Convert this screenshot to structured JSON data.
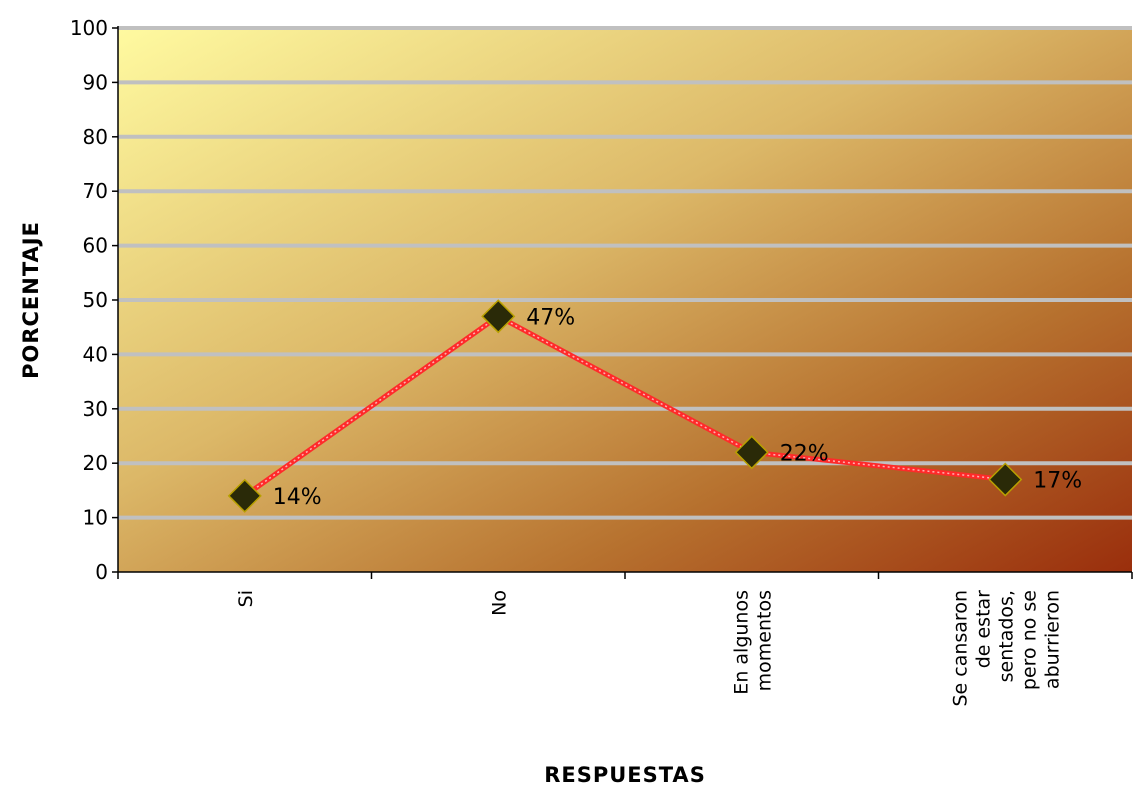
{
  "chart_data": {
    "type": "line",
    "categories": [
      [
        "Si"
      ],
      [
        "No"
      ],
      [
        "En algunos",
        "momentos"
      ],
      [
        "Se cansaron",
        "de estar",
        "sentados,",
        "pero no se",
        "aburrieron"
      ]
    ],
    "values": [
      14,
      47,
      22,
      17
    ],
    "data_labels": [
      "14%",
      "47%",
      "22%",
      "17%"
    ],
    "xlabel": "RESPUESTAS",
    "ylabel": "PORCENTAJE",
    "ylim": [
      0,
      100
    ],
    "yticks": [
      0,
      10,
      20,
      30,
      40,
      50,
      60,
      70,
      80,
      90,
      100
    ],
    "grid": true,
    "legend": "none",
    "colors": {
      "line": "#ff2a2a",
      "marker_fill": "#2a2a08",
      "marker_stroke": "#b8a000",
      "grid": "#c0c0c0",
      "background_start": "#fffaa0",
      "background_end": "#9a2e0c"
    }
  }
}
